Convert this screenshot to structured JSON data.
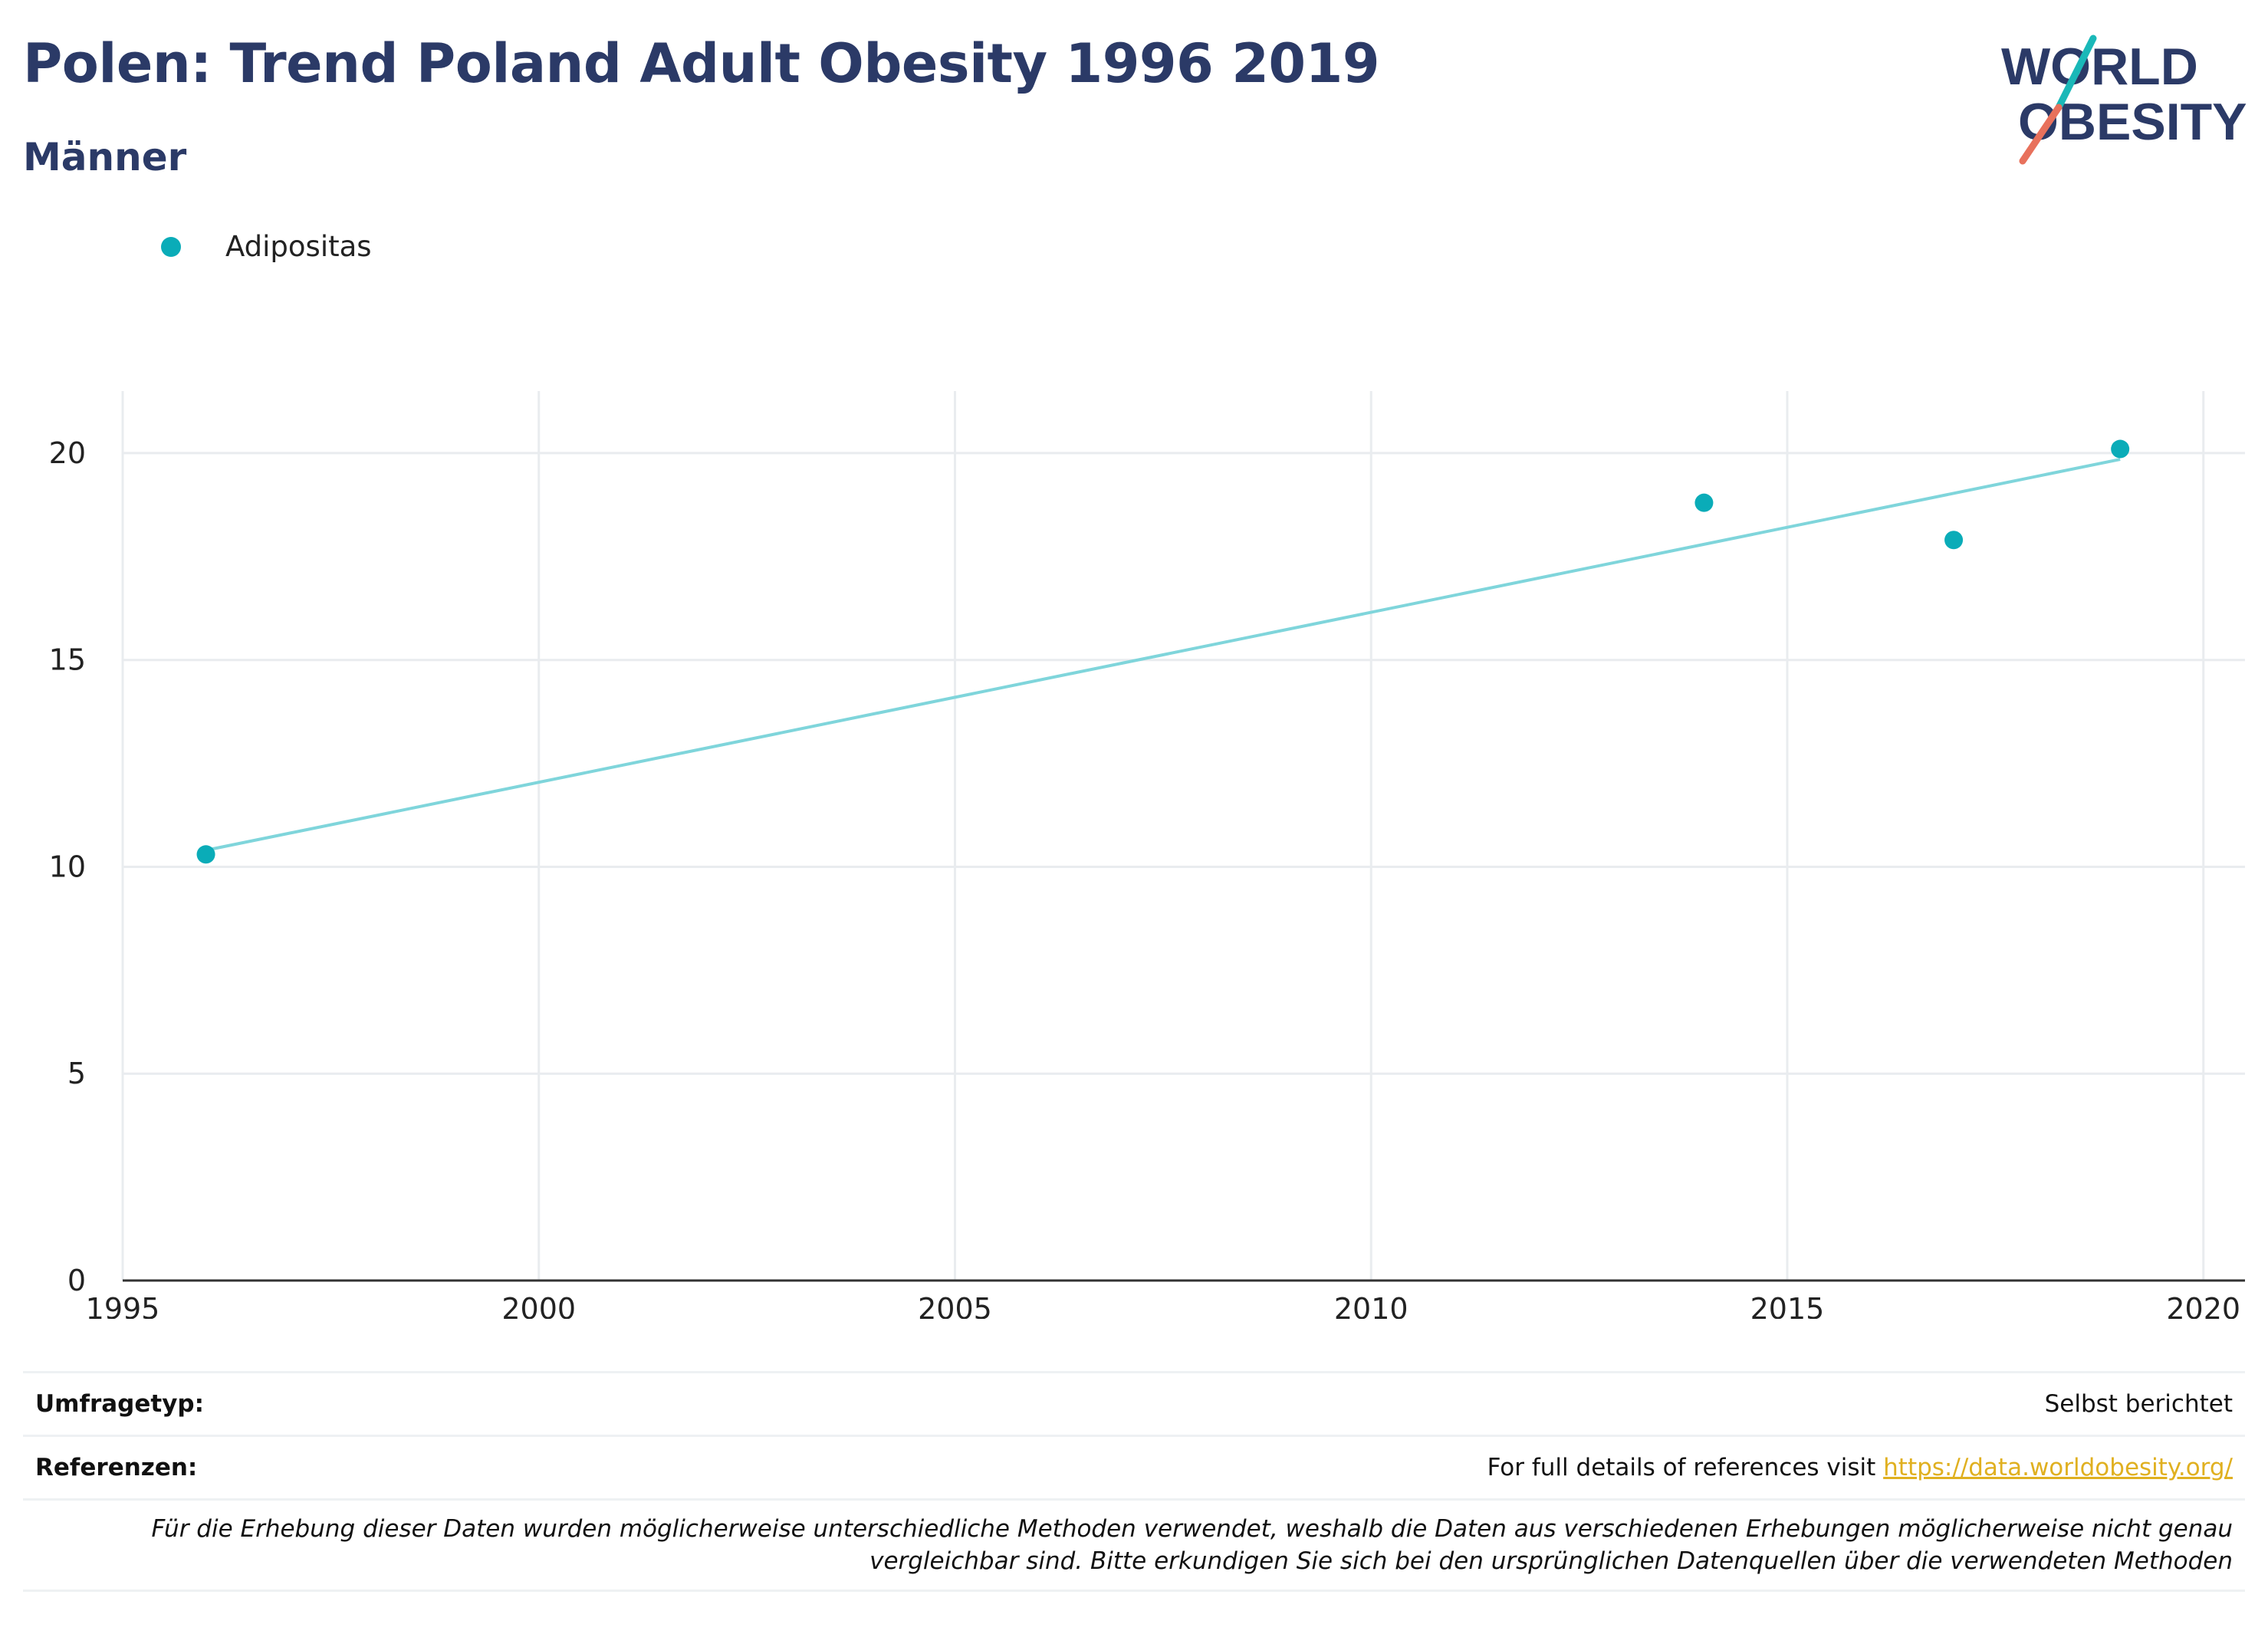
{
  "header": {
    "title": "Polen: Trend Poland Adult Obesity 1996 2019",
    "subtitle": "Männer"
  },
  "logo": {
    "line1": "WORLD",
    "line2": "OBESITY"
  },
  "colors": {
    "title": "#2b3a67",
    "series": "#0aacb8",
    "trend": "#7fd5db",
    "grid": "#e9ecef",
    "link": "#e0b020",
    "logo_teal": "#1ab8b8",
    "logo_coral": "#e8715c"
  },
  "chart_data": {
    "type": "scatter",
    "title": "Polen: Trend Poland Adult Obesity 1996 2019",
    "subtitle": "Männer",
    "series": [
      {
        "name": "Adipositas",
        "x": [
          1996,
          2014,
          2017,
          2019
        ],
        "y": [
          10.3,
          18.8,
          17.9,
          20.1
        ]
      }
    ],
    "trendline": {
      "x": [
        1996,
        2019
      ],
      "y": [
        10.4,
        19.85
      ]
    },
    "xlim": [
      1995,
      2020.5
    ],
    "ylim": [
      0,
      21.5
    ],
    "xticks": [
      1995,
      2000,
      2005,
      2010,
      2015,
      2020
    ],
    "yticks": [
      0,
      5,
      10,
      15,
      20
    ],
    "xlabel": "",
    "ylabel": "",
    "grid": true,
    "legend_position": "top-left"
  },
  "footer": {
    "survey_key": "Umfragetyp:",
    "survey_value": "Selbst berichtet",
    "ref_key": "Referenzen:",
    "ref_text": "For full details of references visit ",
    "ref_link": "https://data.worldobesity.org/",
    "note_line1": "Für die Erhebung dieser Daten wurden möglicherweise unterschiedliche Methoden verwendet, weshalb die Daten aus verschiedenen Erhebungen möglicherweise nicht genau",
    "note_line2": "vergleichbar sind. Bitte erkundigen Sie sich bei den ursprünglichen Datenquellen über die verwendeten Methoden"
  }
}
